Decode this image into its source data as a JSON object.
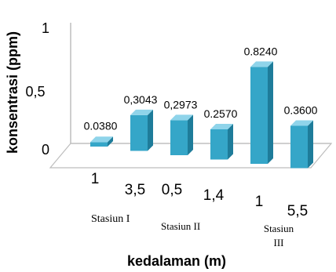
{
  "chart_data": {
    "type": "bar",
    "style": "3d-column",
    "categories": [
      "1",
      "3,5",
      "0,5",
      "1,4",
      "1",
      "5,5"
    ],
    "values": [
      0.038,
      0.3043,
      0.2973,
      0.257,
      0.824,
      0.36
    ],
    "data_labels": [
      "0.0380",
      "0,3043",
      "0,2973",
      "0.2570",
      "0.8240",
      "0.3600"
    ],
    "groups": [
      {
        "label": "Stasiun I"
      },
      {
        "label": "Stasiun II"
      },
      {
        "label_line1": "Stasiun",
        "label_line2": "III"
      }
    ],
    "yticks": [
      "0",
      "0,5",
      "1"
    ],
    "ylim": [
      0,
      1
    ],
    "xlabel": "kedalaman (m)",
    "ylabel": "konsentrasi (ppm)",
    "grid": false,
    "legend": "none",
    "colors": {
      "bar_front": "#35a6c8",
      "bar_top": "#8fd4ea",
      "bar_side": "#1e7c9a",
      "axis": "#bdbdbd"
    }
  }
}
